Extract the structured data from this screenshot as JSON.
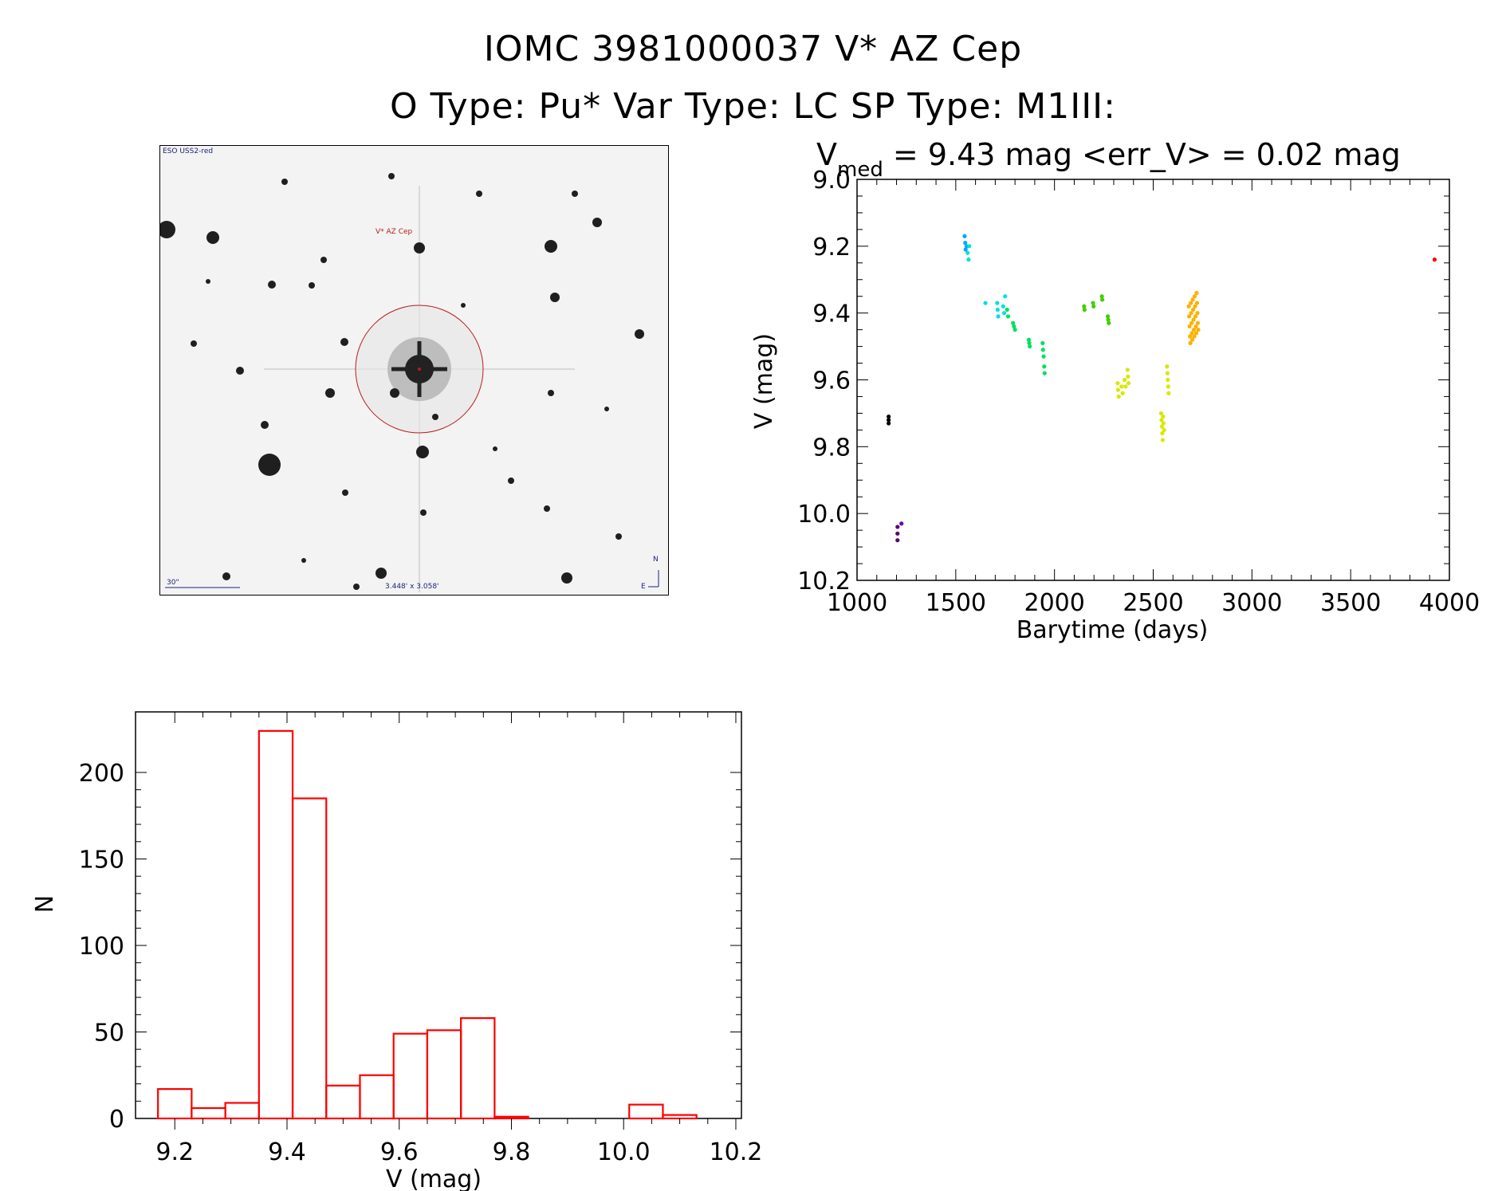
{
  "header": {
    "line1": "IOMC 3981000037    V* AZ Cep",
    "line2": "O Type: Pu*  Var Type: LC  SP Type: M1III:"
  },
  "image_panel": {
    "survey_label": "ESO USS2-red",
    "target_label": "V* AZ Cep",
    "scale_label": "30\"",
    "size_label": "3.448' x 3.058'",
    "north_label": "N",
    "east_label": "E"
  },
  "chart_data": [
    {
      "type": "scatter",
      "title_main": "V",
      "title_sub": "med",
      "title_rest": " = 9.43 mag <err_V> = 0.02 mag",
      "xlabel": "Barytime (days)",
      "ylabel": "V (mag)",
      "xlim": [
        1000,
        4000
      ],
      "ylim": [
        10.2,
        9.0
      ],
      "x_ticks": [
        1000,
        1500,
        2000,
        2500,
        3000,
        3500,
        4000
      ],
      "y_ticks": [
        9.0,
        9.2,
        9.4,
        9.6,
        9.8,
        10.0,
        10.2
      ],
      "y_tick_labels": [
        "9.0",
        "9.2",
        "9.4",
        "9.6",
        "9.8",
        "10.0",
        "10.2"
      ],
      "color_by_time": true,
      "colormap": [
        "#000000",
        "#5b006b",
        "#6a00b5",
        "#2840e0",
        "#00a8ff",
        "#00e0e0",
        "#00e060",
        "#40d000",
        "#d8e800",
        "#ffb000",
        "#ff5000",
        "#ff0000"
      ],
      "points": [
        {
          "x": 1160,
          "y": 9.71
        },
        {
          "x": 1160,
          "y": 9.72
        },
        {
          "x": 1160,
          "y": 9.73
        },
        {
          "x": 1205,
          "y": 10.04
        },
        {
          "x": 1205,
          "y": 10.06
        },
        {
          "x": 1205,
          "y": 10.08
        },
        {
          "x": 1225,
          "y": 10.03
        },
        {
          "x": 1545,
          "y": 9.17
        },
        {
          "x": 1548,
          "y": 9.19
        },
        {
          "x": 1550,
          "y": 9.21
        },
        {
          "x": 1555,
          "y": 9.2
        },
        {
          "x": 1560,
          "y": 9.22
        },
        {
          "x": 1565,
          "y": 9.24
        },
        {
          "x": 1568,
          "y": 9.2
        },
        {
          "x": 1650,
          "y": 9.37
        },
        {
          "x": 1710,
          "y": 9.37
        },
        {
          "x": 1712,
          "y": 9.39
        },
        {
          "x": 1715,
          "y": 9.41
        },
        {
          "x": 1740,
          "y": 9.38
        },
        {
          "x": 1745,
          "y": 9.4
        },
        {
          "x": 1750,
          "y": 9.35
        },
        {
          "x": 1760,
          "y": 9.39
        },
        {
          "x": 1765,
          "y": 9.41
        },
        {
          "x": 1790,
          "y": 9.43
        },
        {
          "x": 1795,
          "y": 9.44
        },
        {
          "x": 1800,
          "y": 9.45
        },
        {
          "x": 1870,
          "y": 9.48
        },
        {
          "x": 1872,
          "y": 9.49
        },
        {
          "x": 1875,
          "y": 9.5
        },
        {
          "x": 1940,
          "y": 9.49
        },
        {
          "x": 1942,
          "y": 9.51
        },
        {
          "x": 1945,
          "y": 9.53
        },
        {
          "x": 1948,
          "y": 9.56
        },
        {
          "x": 1950,
          "y": 9.58
        },
        {
          "x": 2150,
          "y": 9.38
        },
        {
          "x": 2152,
          "y": 9.39
        },
        {
          "x": 2195,
          "y": 9.37
        },
        {
          "x": 2198,
          "y": 9.38
        },
        {
          "x": 2240,
          "y": 9.35
        },
        {
          "x": 2242,
          "y": 9.36
        },
        {
          "x": 2270,
          "y": 9.41
        },
        {
          "x": 2272,
          "y": 9.42
        },
        {
          "x": 2275,
          "y": 9.43
        },
        {
          "x": 2320,
          "y": 9.61
        },
        {
          "x": 2322,
          "y": 9.63
        },
        {
          "x": 2325,
          "y": 9.65
        },
        {
          "x": 2340,
          "y": 9.62
        },
        {
          "x": 2345,
          "y": 9.64
        },
        {
          "x": 2355,
          "y": 9.6
        },
        {
          "x": 2360,
          "y": 9.62
        },
        {
          "x": 2370,
          "y": 9.57
        },
        {
          "x": 2372,
          "y": 9.59
        },
        {
          "x": 2375,
          "y": 9.61
        },
        {
          "x": 2540,
          "y": 9.7
        },
        {
          "x": 2542,
          "y": 9.72
        },
        {
          "x": 2544,
          "y": 9.74
        },
        {
          "x": 2546,
          "y": 9.76
        },
        {
          "x": 2548,
          "y": 9.78
        },
        {
          "x": 2550,
          "y": 9.71
        },
        {
          "x": 2552,
          "y": 9.73
        },
        {
          "x": 2555,
          "y": 9.75
        },
        {
          "x": 2570,
          "y": 9.56
        },
        {
          "x": 2572,
          "y": 9.58
        },
        {
          "x": 2574,
          "y": 9.6
        },
        {
          "x": 2576,
          "y": 9.62
        },
        {
          "x": 2578,
          "y": 9.64
        },
        {
          "x": 2680,
          "y": 9.38
        },
        {
          "x": 2682,
          "y": 9.41
        },
        {
          "x": 2684,
          "y": 9.44
        },
        {
          "x": 2686,
          "y": 9.47
        },
        {
          "x": 2688,
          "y": 9.49
        },
        {
          "x": 2690,
          "y": 9.37
        },
        {
          "x": 2692,
          "y": 9.4
        },
        {
          "x": 2694,
          "y": 9.43
        },
        {
          "x": 2696,
          "y": 9.46
        },
        {
          "x": 2698,
          "y": 9.48
        },
        {
          "x": 2700,
          "y": 9.36
        },
        {
          "x": 2702,
          "y": 9.39
        },
        {
          "x": 2704,
          "y": 9.42
        },
        {
          "x": 2706,
          "y": 9.45
        },
        {
          "x": 2708,
          "y": 9.47
        },
        {
          "x": 2710,
          "y": 9.35
        },
        {
          "x": 2712,
          "y": 9.38
        },
        {
          "x": 2714,
          "y": 9.41
        },
        {
          "x": 2716,
          "y": 9.44
        },
        {
          "x": 2718,
          "y": 9.46
        },
        {
          "x": 2720,
          "y": 9.34
        },
        {
          "x": 2722,
          "y": 9.37
        },
        {
          "x": 2724,
          "y": 9.4
        },
        {
          "x": 2726,
          "y": 9.43
        },
        {
          "x": 2728,
          "y": 9.45
        },
        {
          "x": 3925,
          "y": 9.24
        }
      ]
    },
    {
      "type": "bar",
      "histogram": true,
      "xlabel": "V (mag)",
      "ylabel": "N",
      "xlim": [
        9.13,
        10.21
      ],
      "ylim": [
        0,
        235
      ],
      "x_ticks": [
        9.2,
        9.4,
        9.6,
        9.8,
        10.0,
        10.2
      ],
      "x_tick_labels": [
        "9.2",
        "9.4",
        "9.6",
        "9.8",
        "10.0",
        "10.2"
      ],
      "y_ticks": [
        0,
        50,
        100,
        150,
        200
      ],
      "bin_edges": [
        9.17,
        9.23,
        9.29,
        9.35,
        9.41,
        9.47,
        9.53,
        9.59,
        9.65,
        9.71,
        9.77,
        9.83,
        9.89,
        9.95,
        10.01,
        10.07,
        10.13
      ],
      "counts": [
        17,
        6,
        9,
        224,
        185,
        19,
        25,
        49,
        51,
        58,
        1,
        0,
        0,
        0,
        8,
        2
      ],
      "color": "#ff0000"
    }
  ]
}
